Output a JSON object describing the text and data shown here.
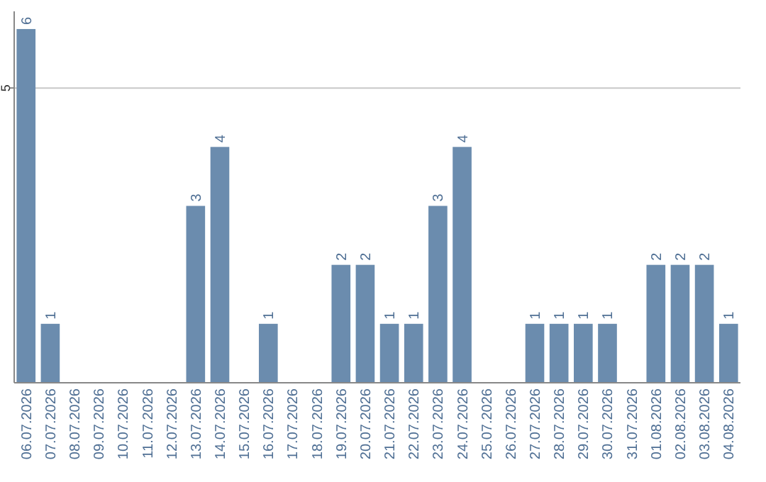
{
  "chart_data": {
    "type": "bar",
    "categories": [
      "06.07.2026",
      "07.07.2026",
      "08.07.2026",
      "09.07.2026",
      "10.07.2026",
      "11.07.2026",
      "12.07.2026",
      "13.07.2026",
      "14.07.2026",
      "15.07.2026",
      "16.07.2026",
      "17.07.2026",
      "18.07.2026",
      "19.07.2026",
      "20.07.2026",
      "21.07.2026",
      "22.07.2026",
      "23.07.2026",
      "24.07.2026",
      "25.07.2026",
      "26.07.2026",
      "27.07.2026",
      "28.07.2026",
      "29.07.2026",
      "30.07.2026",
      "31.07.2026",
      "01.08.2026",
      "02.08.2026",
      "03.08.2026",
      "04.08.2026"
    ],
    "values": [
      6,
      1,
      0,
      0,
      0,
      0,
      0,
      3,
      4,
      0,
      1,
      0,
      0,
      2,
      2,
      1,
      1,
      3,
      4,
      0,
      0,
      1,
      1,
      1,
      1,
      0,
      2,
      2,
      2,
      1
    ],
    "value_labels": [
      "6",
      "1",
      null,
      null,
      null,
      null,
      null,
      "3",
      "4",
      null,
      "1",
      null,
      null,
      "2",
      "2",
      "1",
      "1",
      "3",
      "4",
      null,
      null,
      "1",
      "1",
      "1",
      "1",
      null,
      "2",
      "2",
      "2",
      "1"
    ],
    "color": "#6b8cae",
    "ylim": [
      0,
      6.3
    ],
    "yticks": [
      5
    ],
    "grid": "y"
  }
}
